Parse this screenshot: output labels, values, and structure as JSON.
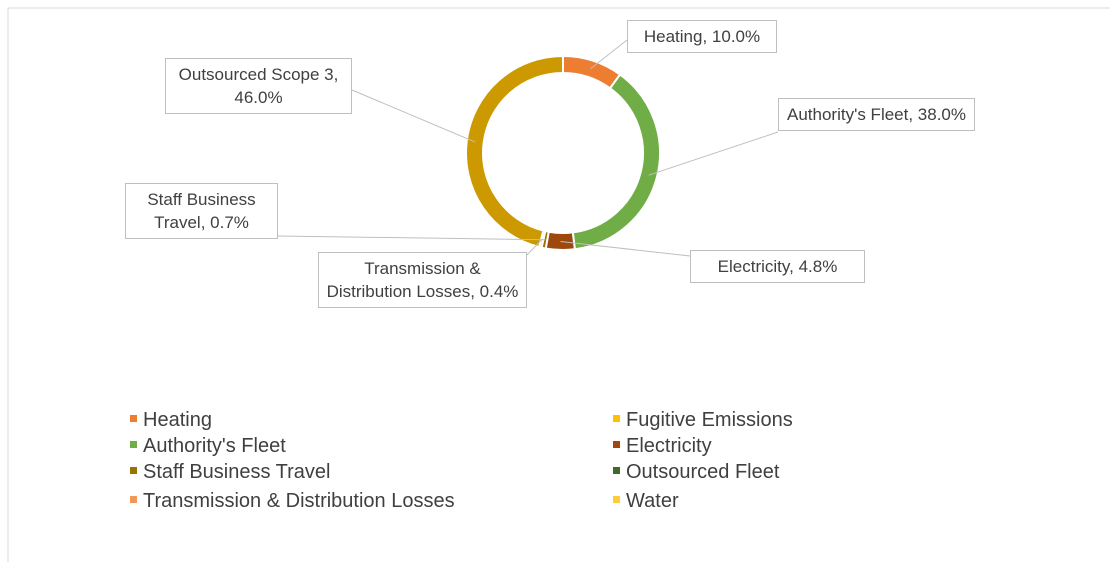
{
  "chart_data": {
    "type": "donut",
    "categories": [
      "Heating",
      "Fugitive Emissions",
      "Authority's Fleet",
      "Electricity",
      "Staff Business Travel",
      "Outsourced Fleet",
      "Transmission & Distribution Losses",
      "Water",
      "Outsourced Scope 3"
    ],
    "values": [
      10.0,
      0,
      38.0,
      4.8,
      0.7,
      0,
      0.4,
      0,
      46.0
    ],
    "value_labels": [
      "Heating, 10.0%",
      null,
      "Authority's Fleet, 38.0%",
      "Electricity, 4.8%",
      "Staff Business Travel, 0.7%",
      null,
      "Transmission & Distribution Losses, 0.4%",
      null,
      "Outsourced Scope 3, 46.0%"
    ],
    "colors": [
      "#ed7d31",
      "#ffc000",
      "#70ad47",
      "#9e480e",
      "#997300",
      "#43682b",
      "#f1975a",
      "#ffcd33",
      "#cc9900"
    ],
    "legend": [
      "Heating",
      "Fugitive Emissions",
      "Authority's Fleet",
      "Electricity",
      "Staff Business Travel",
      "Outsourced Fleet",
      "Transmission & Distribution Losses",
      "Water"
    ]
  }
}
